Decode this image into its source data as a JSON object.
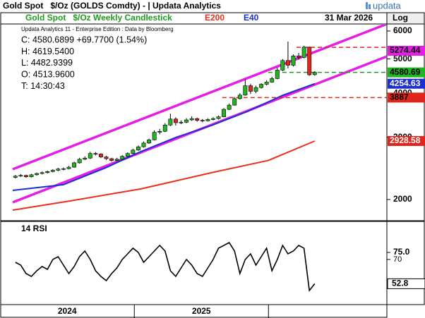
{
  "header": {
    "title": "Gold Spot   $/Oz (GOLDS Comdty) - | Updata Analytics",
    "logo": "updata"
  },
  "chart_data": [
    {
      "type": "candlestick",
      "date": "31 Mar 2026",
      "scale_label": "Log",
      "log_scale": true,
      "info": [
        "Updata Analytics 11 - Enterprise Edition : Data by Bloomberg",
        "C: 4580.6899 +69.7700 (1.54%)",
        "H: 4619.5400",
        "L: 4482.9399",
        "O: 4513.9600",
        "T: 14:30:43"
      ],
      "xlim": [
        -0.5,
        69.5
      ],
      "x": [
        0,
        1,
        2,
        3,
        4,
        5,
        6,
        7,
        8,
        9,
        10,
        11,
        12,
        13,
        14,
        15,
        16,
        17,
        18,
        19,
        20,
        21,
        22,
        23,
        24,
        25,
        26,
        27,
        28,
        29,
        30,
        31,
        32,
        33,
        34,
        35,
        36,
        37,
        38,
        39,
        40,
        41,
        42,
        43,
        44,
        45,
        46,
        47,
        48,
        49,
        50,
        51,
        52,
        53,
        54,
        55,
        56
      ],
      "candles": {
        "name": "Gold Spot   $/Oz Weekly Candlestick",
        "color": "#1f9a1f",
        "up_color": "#22b522",
        "down_color": "#e0261c",
        "open": [
          2310,
          2330,
          2340,
          2320,
          2350,
          2370,
          2383,
          2400,
          2420,
          2440,
          2445,
          2470,
          2540,
          2600,
          2620,
          2700,
          2690,
          2640,
          2610,
          2580,
          2600,
          2650,
          2700,
          2760,
          2820,
          2890,
          2950,
          3100,
          3120,
          3250,
          3380,
          3300,
          3310,
          3360,
          3390,
          3350,
          3340,
          3370,
          3390,
          3430,
          3600,
          3700,
          3860,
          3950,
          4200,
          4050,
          4150,
          4240,
          4300,
          4400,
          4650,
          4950,
          4800,
          5100,
          5050,
          5400,
          4513.96
        ],
        "high": [
          2345,
          2360,
          2352,
          2365,
          2385,
          2400,
          2415,
          2438,
          2458,
          2465,
          2490,
          2560,
          2625,
          2650,
          2730,
          2725,
          2705,
          2660,
          2625,
          2625,
          2672,
          2720,
          2785,
          2845,
          2920,
          2975,
          3140,
          3170,
          3290,
          3500,
          3420,
          3350,
          3400,
          3440,
          3410,
          3380,
          3400,
          3420,
          3460,
          3630,
          3740,
          3900,
          4000,
          4380,
          4250,
          4200,
          4270,
          4350,
          4450,
          4720,
          5000,
          5600,
          5150,
          5200,
          5450,
          5420,
          4619.54
        ],
        "low": [
          2295,
          2318,
          2305,
          2310,
          2338,
          2355,
          2370,
          2388,
          2405,
          2420,
          2432,
          2460,
          2528,
          2585,
          2605,
          2665,
          2620,
          2590,
          2560,
          2565,
          2590,
          2638,
          2690,
          2748,
          2805,
          2875,
          2940,
          3060,
          3105,
          3230,
          3240,
          3270,
          3290,
          3340,
          3320,
          3310,
          3325,
          3350,
          3370,
          3420,
          3585,
          3690,
          3840,
          3935,
          3980,
          4000,
          4120,
          4210,
          4280,
          4380,
          4620,
          4700,
          4760,
          4980,
          5020,
          4480,
          4482.94
        ],
        "close": [
          2330,
          2340,
          2320,
          2350,
          2370,
          2383,
          2400,
          2420,
          2440,
          2445,
          2470,
          2540,
          2600,
          2620,
          2700,
          2690,
          2640,
          2610,
          2580,
          2600,
          2650,
          2700,
          2760,
          2820,
          2890,
          2950,
          3100,
          3120,
          3250,
          3380,
          3300,
          3310,
          3360,
          3390,
          3350,
          3340,
          3370,
          3390,
          3430,
          3600,
          3700,
          3860,
          3950,
          4200,
          4050,
          4150,
          4240,
          4300,
          4400,
          4650,
          4950,
          4800,
          5100,
          5050,
          5400,
          4510,
          4580.69
        ]
      },
      "series": [
        {
          "name": "E200",
          "color": "#e8301c",
          "x": [
            -0.5,
            10.3,
            23.5,
            36.7,
            47.3,
            56
          ],
          "values": [
            1866,
            1982,
            2143,
            2382,
            2580,
            2928.58
          ]
        },
        {
          "name": "E40",
          "color": "#1c2fd0",
          "x": [
            -0.5,
            9,
            16.9,
            23.5,
            30.1,
            36.7,
            43.4,
            50,
            56
          ],
          "values": [
            2123,
            2203,
            2460,
            2735,
            3000,
            3243,
            3550,
            3945,
            4254.63
          ]
        }
      ],
      "channels": [
        {
          "color": "#e51ee5",
          "x": [
            -0.5,
            69.5
          ],
          "values": [
            2437,
            6281
          ]
        },
        {
          "color": "#e51ee5",
          "x": [
            -0.5,
            69.5
          ],
          "values": [
            1963,
            5083
          ]
        }
      ],
      "levels": [
        {
          "value": 5395,
          "color": "#e0261c",
          "from": 52.6
        },
        {
          "value": 3887,
          "color": "#e0261c",
          "from": 38.7
        },
        {
          "value": 4580.69,
          "color": "#1f9a1f",
          "from": 47.3
        }
      ],
      "tags": [
        {
          "value": 5274.44,
          "color": "#e51ee5",
          "text_color": "#000000"
        },
        {
          "value": 4580.69,
          "color": "#22b522",
          "text_color": "#000000"
        },
        {
          "value": 4254.63,
          "color": "#1c2fd0",
          "text_color": "#ffffff"
        },
        {
          "value": 3887,
          "color": "#e0261c",
          "text_color": "#000000"
        },
        {
          "value": 2928.58,
          "color": "#e0261c",
          "text_color": "#ffffff"
        }
      ],
      "ylim": [
        1750,
        6281
      ],
      "yticks": [
        2000,
        3000,
        4000,
        5000,
        6000
      ]
    },
    {
      "type": "line",
      "title": "14 RSI",
      "xlim": [
        -0.5,
        69.5
      ],
      "x": [
        0,
        1,
        2,
        3,
        4,
        5,
        6,
        7,
        8,
        9,
        10,
        11,
        12,
        13,
        14,
        15,
        16,
        17,
        18,
        19,
        20,
        21,
        22,
        23,
        24,
        25,
        26,
        27,
        28,
        29,
        30,
        31,
        32,
        33,
        34,
        35,
        36,
        37,
        38,
        39,
        40,
        41,
        42,
        43,
        44,
        45,
        46,
        47,
        48,
        49,
        50,
        51,
        52,
        53,
        54,
        55,
        56
      ],
      "series": [
        {
          "color": "#000000",
          "values": [
            68,
            66,
            60,
            58,
            62,
            65,
            63,
            70,
            72,
            66,
            60,
            65,
            72,
            76,
            70,
            62,
            58,
            55,
            60,
            64,
            70,
            74,
            78,
            75,
            68,
            72,
            76,
            80,
            76,
            62,
            58,
            64,
            70,
            66,
            60,
            58,
            64,
            70,
            78,
            80,
            82,
            76,
            60,
            70,
            74,
            66,
            72,
            78,
            62,
            70,
            80,
            74,
            76,
            80,
            78,
            48,
            52.8
          ]
        }
      ],
      "ylim": [
        38,
        95
      ],
      "yticks": [
        {
          "value": 75,
          "label": "75.0"
        },
        70
      ],
      "xticks": [
        {
          "value": 9.7,
          "label": "2024"
        },
        {
          "value": 34.8,
          "label": "2025"
        }
      ]
    }
  ]
}
